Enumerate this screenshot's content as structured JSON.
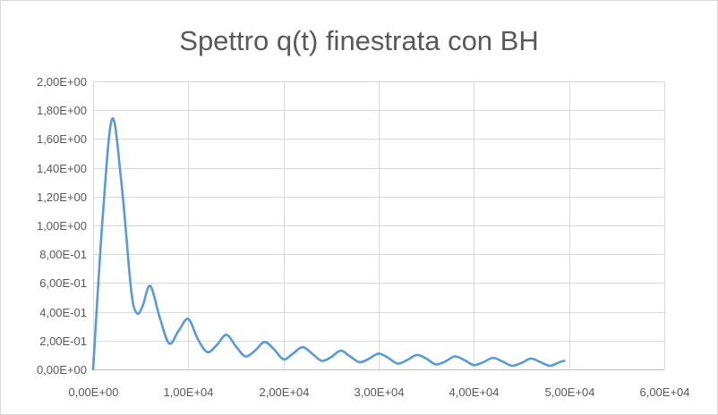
{
  "chart_data": {
    "type": "line",
    "title": "Spettro q(t) finestrata con BH",
    "xlabel": "",
    "ylabel": "",
    "xlim": [
      0,
      60000
    ],
    "ylim": [
      0,
      2.0
    ],
    "x_ticks": [
      0,
      10000,
      20000,
      30000,
      40000,
      50000,
      60000
    ],
    "x_tick_labels": [
      "0,00E+00",
      "1,00E+04",
      "2,00E+04",
      "3,00E+04",
      "4,00E+04",
      "5,00E+04",
      "6,00E+04"
    ],
    "y_ticks": [
      0,
      0.2,
      0.4,
      0.6,
      0.8,
      1.0,
      1.2,
      1.4,
      1.6,
      1.8,
      2.0
    ],
    "y_tick_labels": [
      "0,00E+00",
      "2,00E-01",
      "4,00E-01",
      "6,00E-01",
      "8,00E-01",
      "1,00E+00",
      "1,20E+00",
      "1,40E+00",
      "1,60E+00",
      "1,80E+00",
      "2,00E+00"
    ],
    "grid": true,
    "legend": "none",
    "series_color": "#5b9bd5",
    "series": [
      {
        "x": [
          0,
          1000,
          2000,
          3000,
          4000,
          4600,
          5200,
          6000,
          7000,
          8000,
          9000,
          10000,
          11000,
          12000,
          13000,
          14000,
          15000,
          16000,
          17000,
          18000,
          19000,
          20000,
          21000,
          22000,
          23000,
          24000,
          25000,
          26000,
          27000,
          28000,
          29000,
          30000,
          31000,
          32000,
          33000,
          34000,
          35000,
          36000,
          37000,
          38000,
          39000,
          40000,
          41000,
          42000,
          43000,
          44000,
          45000,
          46000,
          47000,
          48000,
          49000,
          49500
        ],
        "values": [
          0.0,
          1.05,
          1.74,
          1.28,
          0.55,
          0.39,
          0.44,
          0.58,
          0.36,
          0.18,
          0.27,
          0.35,
          0.21,
          0.12,
          0.17,
          0.24,
          0.16,
          0.09,
          0.13,
          0.19,
          0.14,
          0.07,
          0.11,
          0.155,
          0.11,
          0.06,
          0.085,
          0.13,
          0.09,
          0.05,
          0.075,
          0.11,
          0.08,
          0.04,
          0.065,
          0.1,
          0.075,
          0.035,
          0.055,
          0.09,
          0.065,
          0.03,
          0.05,
          0.08,
          0.055,
          0.025,
          0.045,
          0.075,
          0.05,
          0.025,
          0.05,
          0.06
        ]
      }
    ]
  }
}
